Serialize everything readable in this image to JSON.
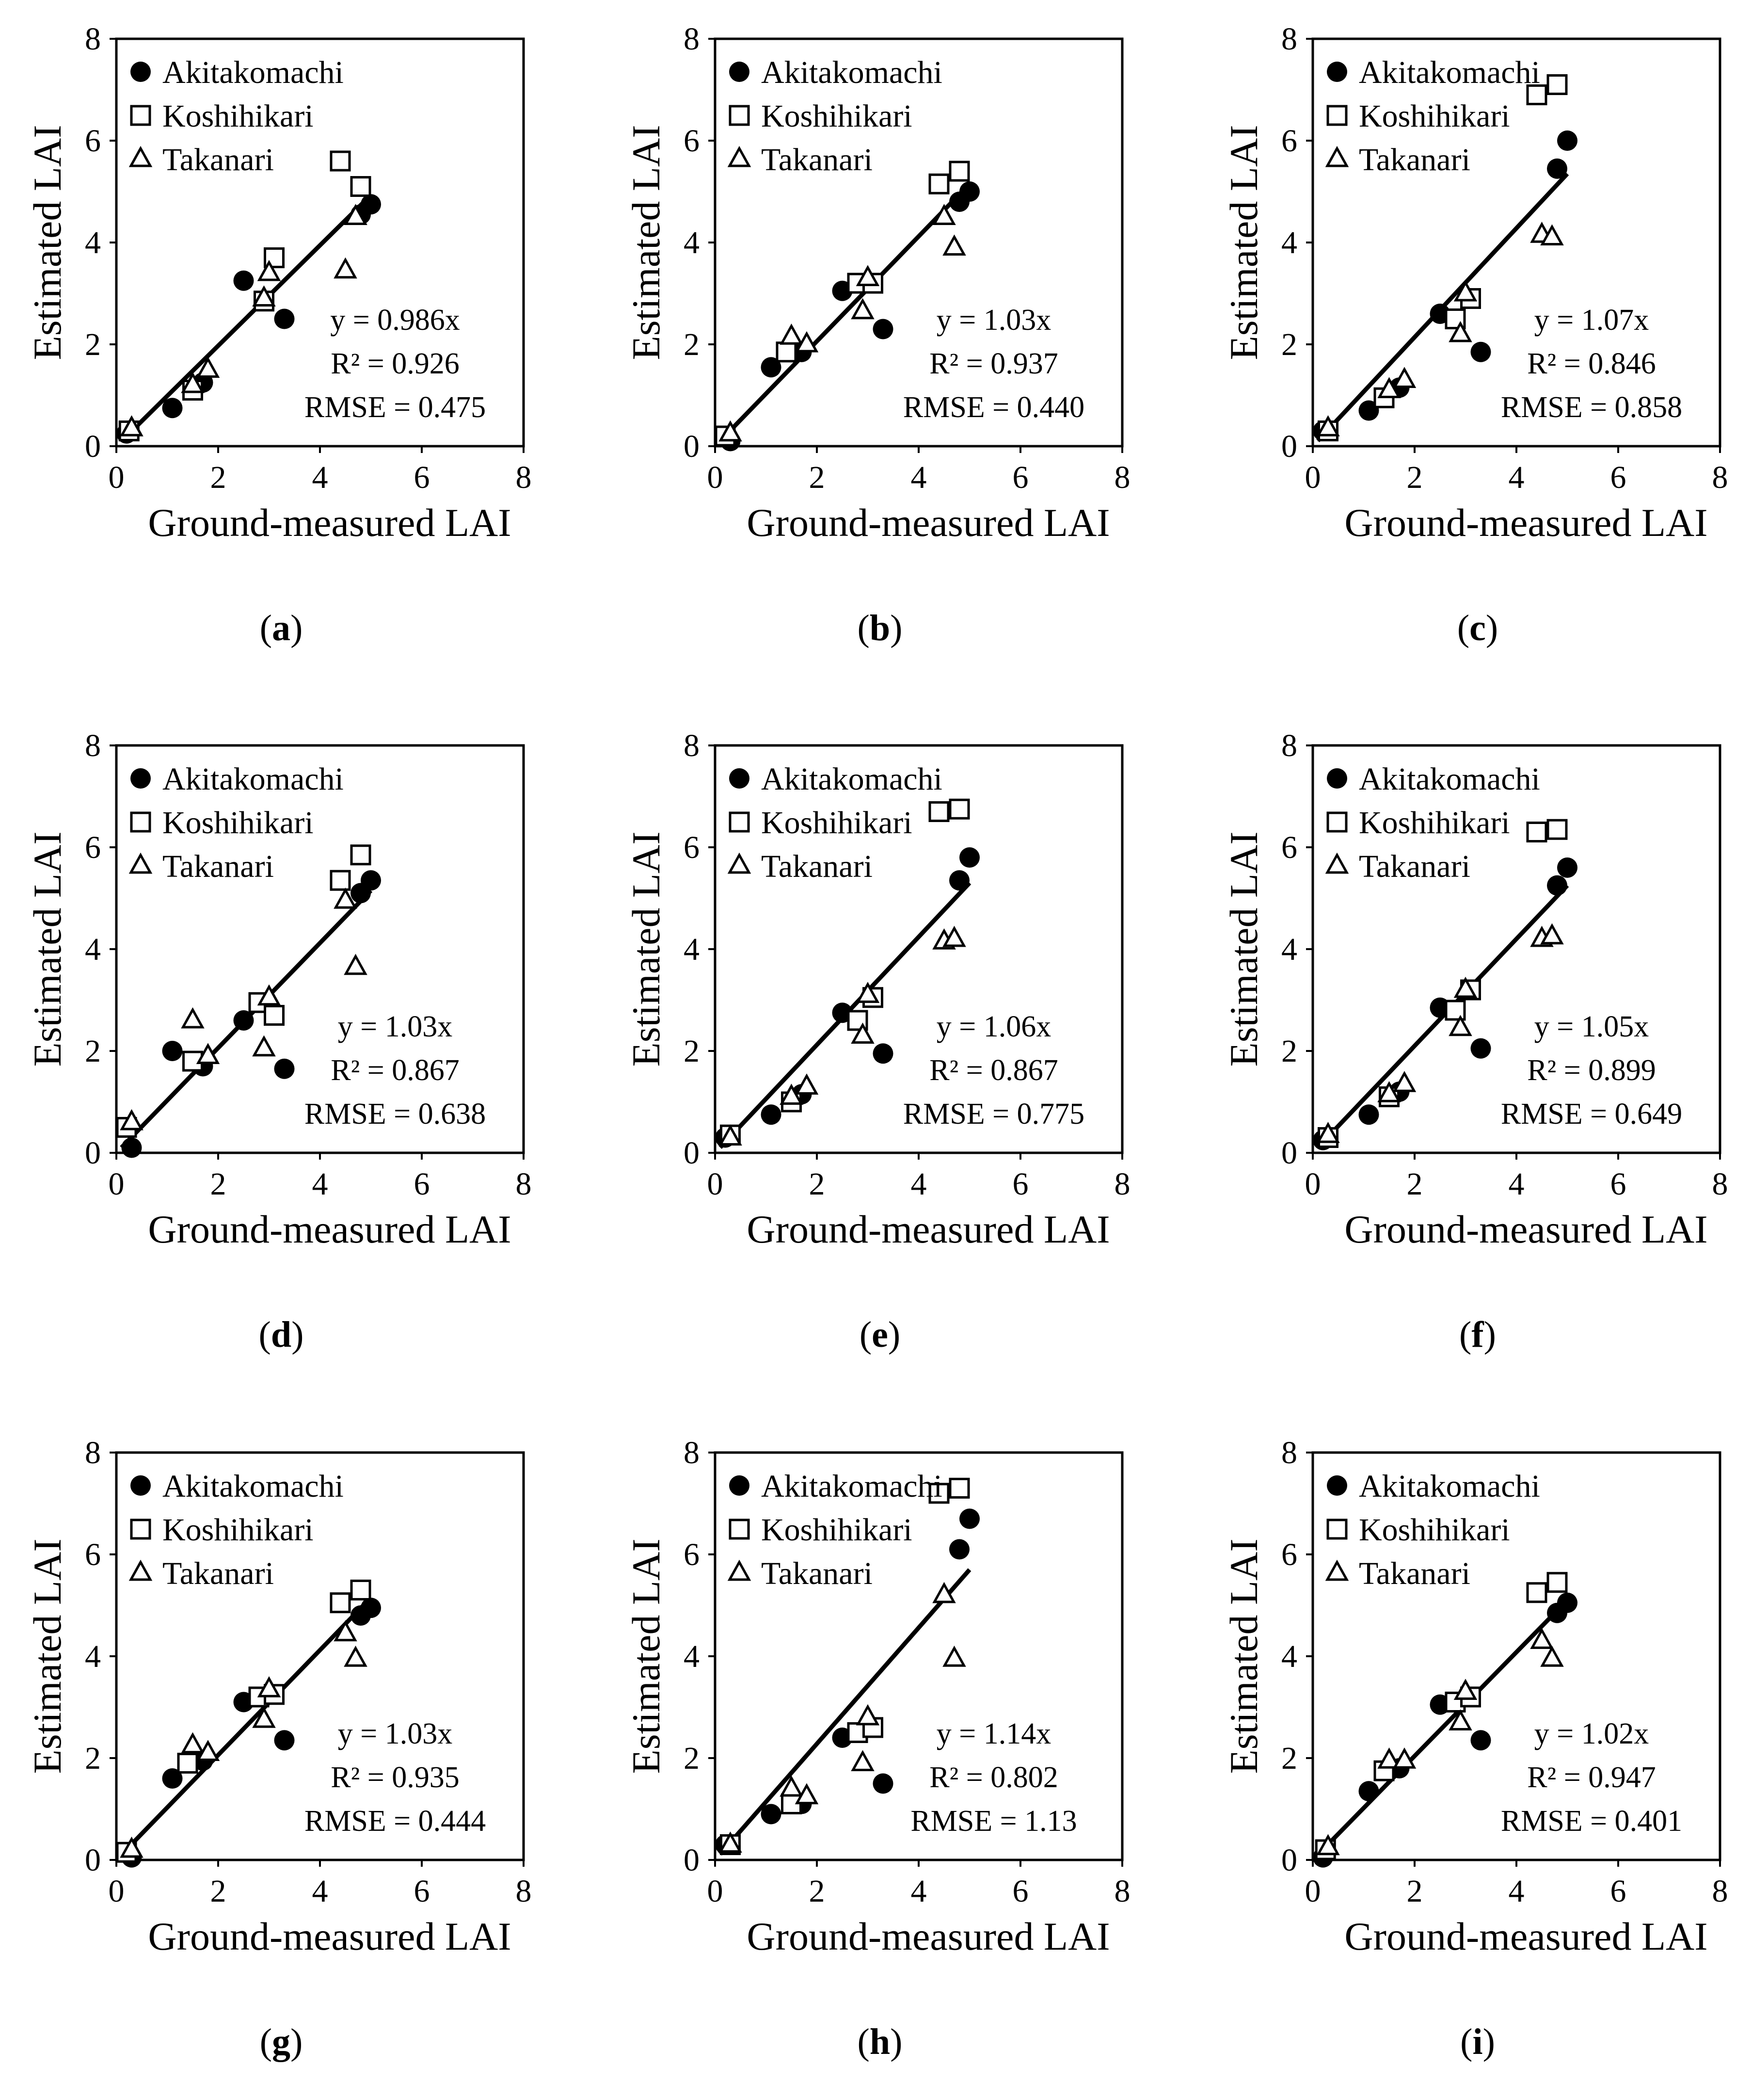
{
  "figure": {
    "legend": [
      "Akitakomachi",
      "Koshihikari",
      "Takanari"
    ],
    "colors": {
      "marker": "#000000",
      "fill_open": "#ffffff"
    },
    "axes": {
      "xlabel": "Ground-measured LAI",
      "ylabel": "Estimated LAI",
      "xlim": [
        0,
        8
      ],
      "ylim": [
        0,
        8
      ],
      "ticks": [
        "0",
        "2",
        "4",
        "6",
        "8"
      ]
    }
  },
  "chart_data": [
    {
      "type": "scatter",
      "panel": "a",
      "equation": "y = 0.986x",
      "r2": "R² = 0.926",
      "rmse": "RMSE = 0.475",
      "slope": 0.986,
      "series": [
        {
          "name": "Akitakomachi",
          "marker": "circle-filled",
          "x": [
            0.2,
            1.1,
            1.7,
            2.5,
            3.3,
            4.8,
            5.0
          ],
          "y": [
            0.25,
            0.75,
            1.25,
            3.25,
            2.5,
            4.55,
            4.75
          ]
        },
        {
          "name": "Koshihikari",
          "marker": "square-open",
          "x": [
            0.25,
            1.5,
            2.9,
            3.1,
            4.4,
            4.8
          ],
          "y": [
            0.3,
            1.1,
            2.85,
            3.7,
            5.6,
            5.1
          ]
        },
        {
          "name": "Takanari",
          "marker": "triangle-open",
          "x": [
            0.3,
            1.5,
            1.8,
            2.9,
            3.0,
            4.5,
            4.7
          ],
          "y": [
            0.35,
            1.2,
            1.5,
            2.9,
            3.4,
            3.45,
            4.5
          ]
        }
      ]
    },
    {
      "type": "scatter",
      "panel": "b",
      "equation": "y = 1.03x",
      "r2": "R² = 0.937",
      "rmse": "RMSE = 0.440",
      "slope": 1.03,
      "series": [
        {
          "name": "Akitakomachi",
          "marker": "circle-filled",
          "x": [
            0.3,
            1.1,
            1.7,
            2.5,
            3.3,
            4.8,
            5.0
          ],
          "y": [
            0.1,
            1.55,
            1.85,
            3.05,
            2.3,
            4.8,
            5.0
          ]
        },
        {
          "name": "Koshihikari",
          "marker": "square-open",
          "x": [
            0.2,
            1.4,
            2.8,
            3.1,
            4.4,
            4.8
          ],
          "y": [
            0.2,
            1.85,
            3.2,
            3.2,
            5.15,
            5.4
          ]
        },
        {
          "name": "Takanari",
          "marker": "triangle-open",
          "x": [
            0.3,
            1.5,
            1.8,
            2.9,
            3.0,
            4.5,
            4.7
          ],
          "y": [
            0.25,
            2.15,
            2.0,
            2.65,
            3.3,
            4.5,
            3.9
          ]
        }
      ]
    },
    {
      "type": "scatter",
      "panel": "c",
      "equation": "y = 1.07x",
      "r2": "R² = 0.846",
      "rmse": "RMSE = 0.858",
      "slope": 1.07,
      "series": [
        {
          "name": "Akitakomachi",
          "marker": "circle-filled",
          "x": [
            0.2,
            1.1,
            1.7,
            2.5,
            3.3,
            4.8,
            5.0
          ],
          "y": [
            0.3,
            0.7,
            1.15,
            2.6,
            1.85,
            5.45,
            6.0
          ]
        },
        {
          "name": "Koshihikari",
          "marker": "square-open",
          "x": [
            0.3,
            1.4,
            2.8,
            3.1,
            4.4,
            4.8
          ],
          "y": [
            0.3,
            0.95,
            2.5,
            2.9,
            6.9,
            7.1
          ]
        },
        {
          "name": "Takanari",
          "marker": "triangle-open",
          "x": [
            0.3,
            1.5,
            1.8,
            2.9,
            3.0,
            4.5,
            4.7
          ],
          "y": [
            0.35,
            1.1,
            1.3,
            2.2,
            3.0,
            4.15,
            4.1
          ]
        }
      ]
    },
    {
      "type": "scatter",
      "panel": "d",
      "equation": "y = 1.03x",
      "r2": "R² = 0.867",
      "rmse": "RMSE = 0.638",
      "slope": 1.03,
      "series": [
        {
          "name": "Akitakomachi",
          "marker": "circle-filled",
          "x": [
            0.3,
            1.1,
            1.7,
            2.5,
            3.3,
            4.8,
            5.0
          ],
          "y": [
            0.1,
            2.0,
            1.7,
            2.6,
            1.65,
            5.1,
            5.35
          ]
        },
        {
          "name": "Koshihikari",
          "marker": "square-open",
          "x": [
            0.2,
            1.5,
            2.8,
            3.1,
            4.4,
            4.8
          ],
          "y": [
            0.5,
            1.8,
            2.95,
            2.7,
            5.35,
            5.85
          ]
        },
        {
          "name": "Takanari",
          "marker": "triangle-open",
          "x": [
            0.3,
            1.5,
            1.8,
            2.9,
            3.0,
            4.5,
            4.7
          ],
          "y": [
            0.6,
            2.6,
            1.9,
            2.05,
            3.05,
            4.95,
            3.65
          ]
        }
      ]
    },
    {
      "type": "scatter",
      "panel": "e",
      "equation": "y = 1.06x",
      "r2": "R² = 0.867",
      "rmse": "RMSE = 0.775",
      "slope": 1.06,
      "series": [
        {
          "name": "Akitakomachi",
          "marker": "circle-filled",
          "x": [
            0.2,
            1.1,
            1.7,
            2.5,
            3.3,
            4.8,
            5.0
          ],
          "y": [
            0.3,
            0.75,
            1.15,
            2.75,
            1.95,
            5.35,
            5.8
          ]
        },
        {
          "name": "Koshihikari",
          "marker": "square-open",
          "x": [
            0.3,
            1.5,
            2.8,
            3.1,
            4.4,
            4.8
          ],
          "y": [
            0.35,
            1.0,
            2.6,
            3.05,
            6.7,
            6.75
          ]
        },
        {
          "name": "Takanari",
          "marker": "triangle-open",
          "x": [
            0.3,
            1.5,
            1.8,
            2.9,
            3.0,
            4.5,
            4.7
          ],
          "y": [
            0.3,
            1.1,
            1.3,
            2.3,
            3.1,
            4.15,
            4.2
          ]
        }
      ]
    },
    {
      "type": "scatter",
      "panel": "f",
      "equation": "y = 1.05x",
      "r2": "R² = 0.899",
      "rmse": "RMSE = 0.649",
      "slope": 1.05,
      "series": [
        {
          "name": "Akitakomachi",
          "marker": "circle-filled",
          "x": [
            0.2,
            1.1,
            1.7,
            2.5,
            3.3,
            4.8,
            5.0
          ],
          "y": [
            0.25,
            0.75,
            1.2,
            2.85,
            2.05,
            5.25,
            5.6
          ]
        },
        {
          "name": "Koshihikari",
          "marker": "square-open",
          "x": [
            0.3,
            1.5,
            2.8,
            3.1,
            4.4,
            4.8
          ],
          "y": [
            0.3,
            1.1,
            2.8,
            3.2,
            6.3,
            6.35
          ]
        },
        {
          "name": "Takanari",
          "marker": "triangle-open",
          "x": [
            0.3,
            1.5,
            1.8,
            2.9,
            3.0,
            4.5,
            4.7
          ],
          "y": [
            0.35,
            1.15,
            1.35,
            2.45,
            3.2,
            4.2,
            4.25
          ]
        }
      ]
    },
    {
      "type": "scatter",
      "panel": "g",
      "equation": "y = 1.03x",
      "r2": "R² = 0.935",
      "rmse": "RMSE = 0.444",
      "slope": 1.03,
      "series": [
        {
          "name": "Akitakomachi",
          "marker": "circle-filled",
          "x": [
            0.3,
            1.1,
            1.7,
            2.5,
            3.3,
            4.8,
            5.0
          ],
          "y": [
            0.05,
            1.6,
            1.95,
            3.1,
            2.35,
            4.8,
            4.95
          ]
        },
        {
          "name": "Koshihikari",
          "marker": "square-open",
          "x": [
            0.2,
            1.4,
            2.8,
            3.1,
            4.4,
            4.8
          ],
          "y": [
            0.15,
            1.9,
            3.2,
            3.25,
            5.05,
            5.3
          ]
        },
        {
          "name": "Takanari",
          "marker": "triangle-open",
          "x": [
            0.3,
            1.5,
            1.8,
            2.9,
            3.0,
            4.5,
            4.7
          ],
          "y": [
            0.2,
            2.25,
            2.1,
            2.75,
            3.35,
            4.45,
            3.95
          ]
        }
      ]
    },
    {
      "type": "scatter",
      "panel": "h",
      "equation": "y = 1.14x",
      "r2": "R² = 0.802",
      "rmse": "RMSE = 1.13",
      "slope": 1.14,
      "series": [
        {
          "name": "Akitakomachi",
          "marker": "circle-filled",
          "x": [
            0.2,
            1.1,
            1.7,
            2.5,
            3.3,
            4.8,
            5.0
          ],
          "y": [
            0.3,
            0.9,
            1.1,
            2.4,
            1.5,
            6.1,
            6.7
          ]
        },
        {
          "name": "Koshihikari",
          "marker": "square-open",
          "x": [
            0.3,
            1.5,
            2.8,
            3.1,
            4.4,
            4.8
          ],
          "y": [
            0.3,
            1.1,
            2.5,
            2.6,
            7.2,
            7.3
          ]
        },
        {
          "name": "Takanari",
          "marker": "triangle-open",
          "x": [
            0.3,
            1.5,
            1.8,
            2.9,
            3.0,
            4.5,
            4.7
          ],
          "y": [
            0.3,
            1.4,
            1.25,
            1.9,
            2.8,
            5.2,
            3.95
          ]
        }
      ]
    },
    {
      "type": "scatter",
      "panel": "i",
      "equation": "y = 1.02x",
      "r2": "R² = 0.947",
      "rmse": "RMSE = 0.401",
      "slope": 1.02,
      "series": [
        {
          "name": "Akitakomachi",
          "marker": "circle-filled",
          "x": [
            0.2,
            1.1,
            1.7,
            2.5,
            3.3,
            4.8,
            5.0
          ],
          "y": [
            0.05,
            1.35,
            1.8,
            3.05,
            2.35,
            4.85,
            5.05
          ]
        },
        {
          "name": "Koshihikari",
          "marker": "square-open",
          "x": [
            0.25,
            1.4,
            2.8,
            3.1,
            4.4,
            4.8
          ],
          "y": [
            0.2,
            1.75,
            3.1,
            3.2,
            5.25,
            5.45
          ]
        },
        {
          "name": "Takanari",
          "marker": "triangle-open",
          "x": [
            0.3,
            1.5,
            1.8,
            2.9,
            3.0,
            4.5,
            4.7
          ],
          "y": [
            0.25,
            1.95,
            1.95,
            2.7,
            3.3,
            4.3,
            3.95
          ]
        }
      ]
    }
  ]
}
